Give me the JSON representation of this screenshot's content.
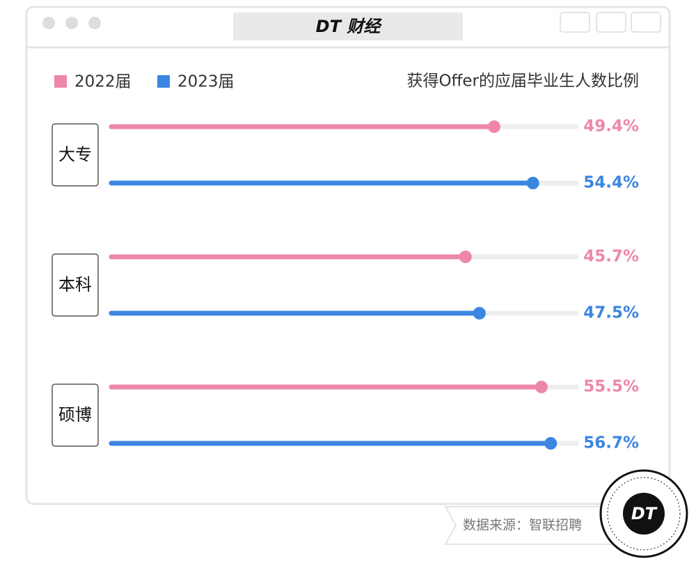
{
  "window_title": "DT 财经",
  "chart_data": {
    "type": "dumbbell-bar",
    "subtitle": "获得Offer的应届毕业生人数比例",
    "categories": [
      "大专",
      "本科",
      "硕博"
    ],
    "series": [
      {
        "name": "2022届",
        "color": "#ee86ab",
        "values": [
          49.4,
          45.7,
          55.5
        ],
        "value_labels": [
          "49.4%",
          "45.7%",
          "55.5%"
        ]
      },
      {
        "name": "2023届",
        "color": "#3b86e0",
        "values": [
          54.4,
          47.5,
          56.7
        ],
        "value_labels": [
          "54.4%",
          "47.5%",
          "56.7%"
        ]
      }
    ],
    "xlim": [
      0,
      60
    ]
  },
  "source": "数据来源：智联招聘",
  "logo": "DT"
}
